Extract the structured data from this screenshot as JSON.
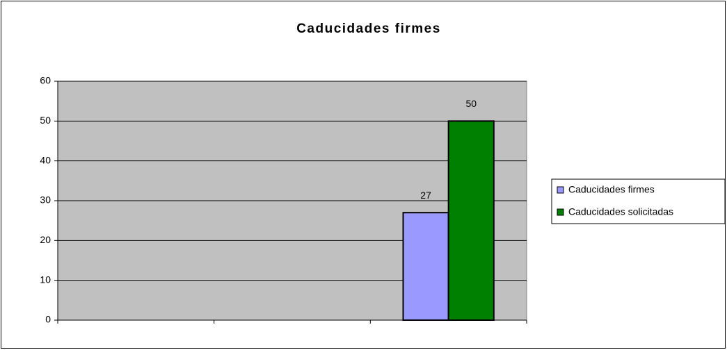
{
  "chart_data": {
    "type": "bar",
    "title": "Caducidades firmes",
    "categories": [
      null,
      null,
      null
    ],
    "series": [
      {
        "name": "Caducidades firmes",
        "color": "#9999ff",
        "values": [
          null,
          null,
          27
        ]
      },
      {
        "name": "Caducidades solicitadas",
        "color": "#008000",
        "values": [
          null,
          null,
          50
        ]
      }
    ],
    "ylim": [
      0,
      60
    ],
    "yticks": [
      0,
      10,
      20,
      30,
      40,
      50,
      60
    ],
    "grid": true,
    "legend": "right"
  }
}
